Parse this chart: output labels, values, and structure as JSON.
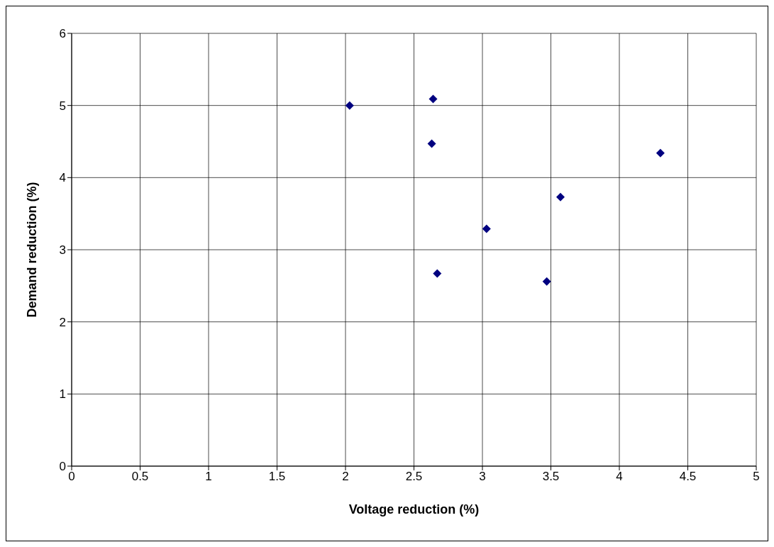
{
  "chart_data": {
    "type": "scatter",
    "xlabel": "Voltage reduction (%)",
    "ylabel": "Demand reduction (%)",
    "x": [
      2.03,
      2.64,
      2.63,
      3.03,
      2.67,
      3.57,
      3.47,
      4.3
    ],
    "values": [
      5.0,
      5.09,
      4.47,
      3.29,
      2.67,
      3.73,
      2.56,
      4.34
    ],
    "color": "#000080",
    "marker": "diamond",
    "xlim": [
      0,
      5
    ],
    "xticks": [
      0,
      0.5,
      1,
      1.5,
      2,
      2.5,
      3,
      3.5,
      4,
      4.5,
      5
    ],
    "ylim": [
      0,
      6
    ],
    "yticks": [
      0,
      1,
      2,
      3,
      4,
      5,
      6
    ],
    "grid": true,
    "legend": false
  }
}
